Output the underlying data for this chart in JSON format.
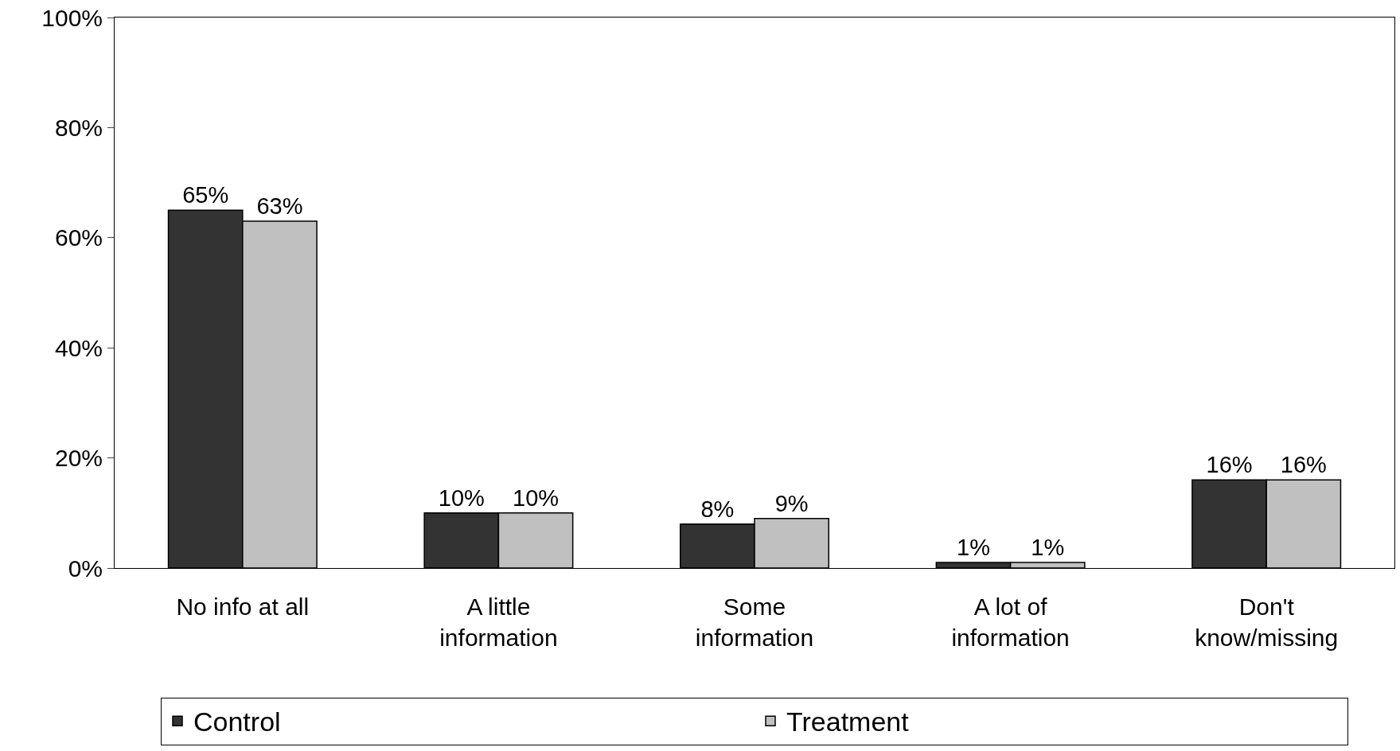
{
  "chart_data": {
    "type": "bar",
    "categories": [
      "No info at all",
      "A little information",
      "Some information",
      "A lot of information",
      "Don't know/missing"
    ],
    "series": [
      {
        "name": "Control",
        "color": "#333333",
        "values": [
          65,
          10,
          8,
          1,
          16
        ],
        "value_labels": [
          "65%",
          "10%",
          "8%",
          "1%",
          "16%"
        ]
      },
      {
        "name": "Treatment",
        "color": "#c0c0c0",
        "values": [
          63,
          10,
          9,
          1,
          16
        ],
        "value_labels": [
          "63%",
          "10%",
          "9%",
          "1%",
          "16%"
        ]
      }
    ],
    "ylim": [
      0,
      100
    ],
    "yticks": [
      {
        "value": 0,
        "label": "0%"
      },
      {
        "value": 20,
        "label": "20%"
      },
      {
        "value": 40,
        "label": "40%"
      },
      {
        "value": 60,
        "label": "60%"
      },
      {
        "value": 80,
        "label": "80%"
      },
      {
        "value": 100,
        "label": "100%"
      }
    ],
    "legend": "bottom"
  }
}
